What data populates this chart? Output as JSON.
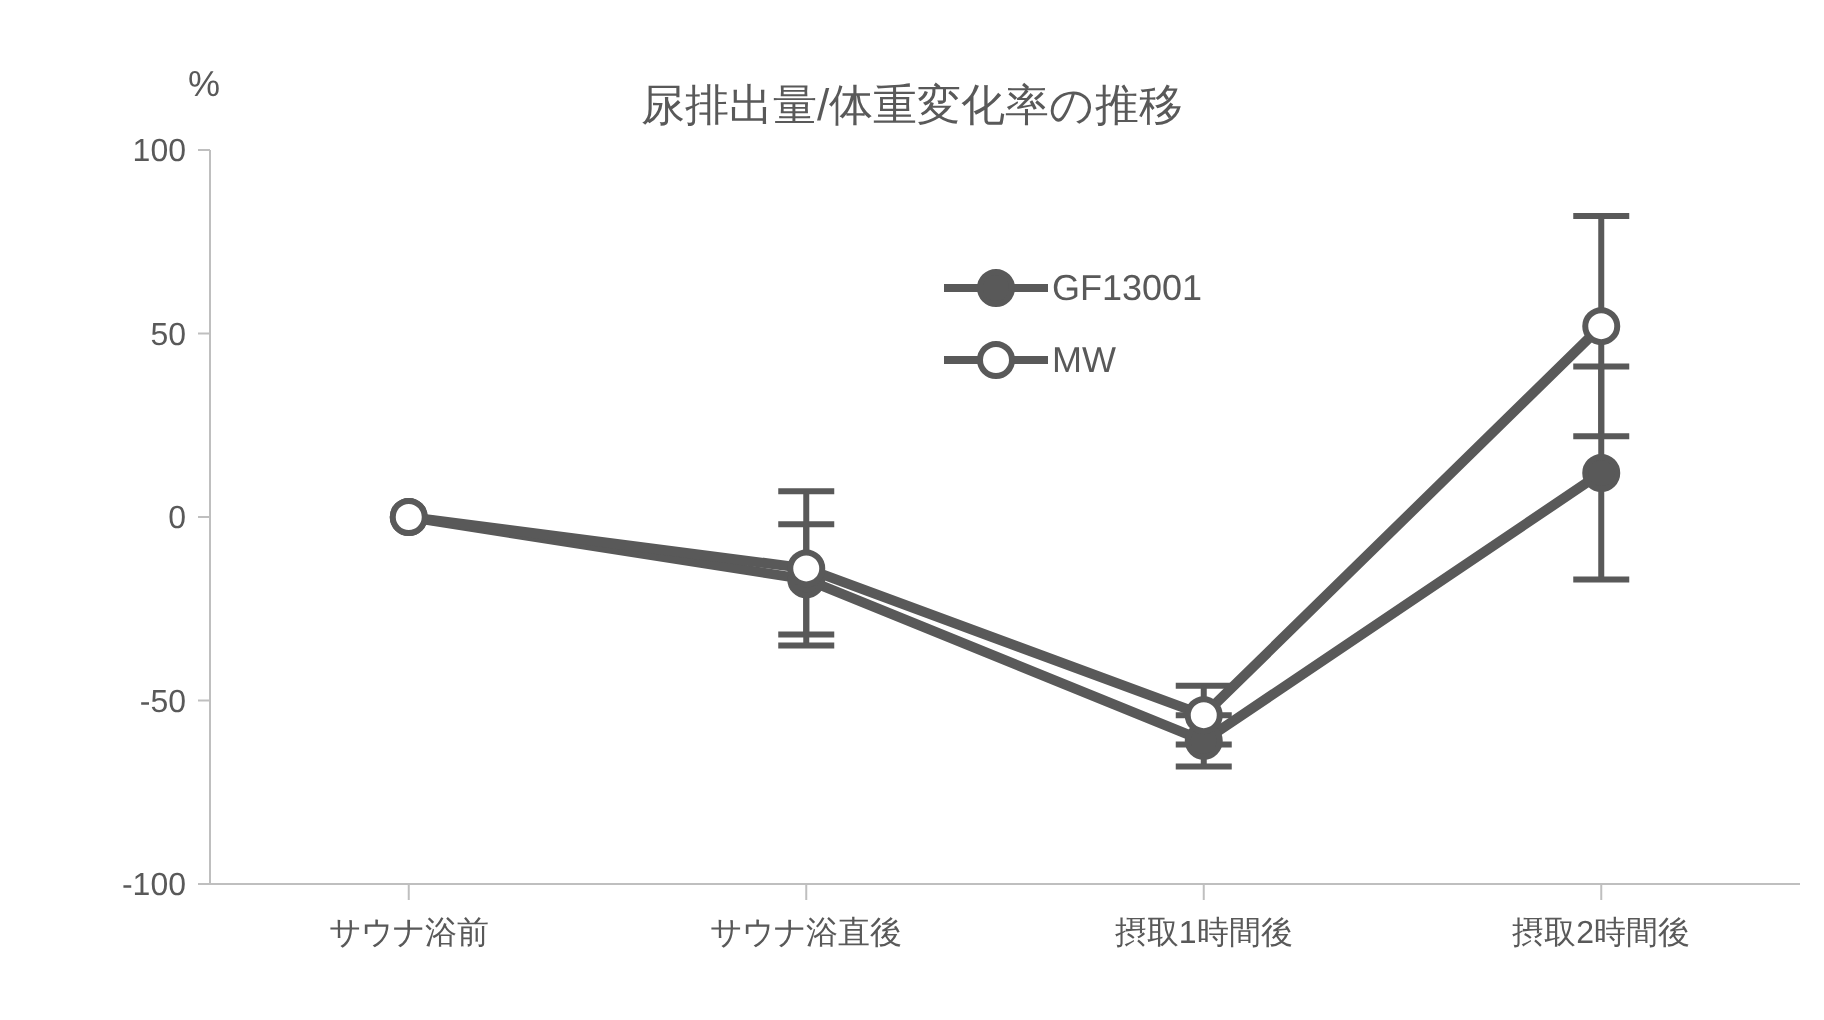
{
  "chart_data": {
    "type": "line",
    "title": "尿排出量/体重変化率の推移",
    "ylabel": "%",
    "categories": [
      "サウナ浴前",
      "サウナ浴直後",
      "摂取1時間後",
      "摂取2時間後"
    ],
    "series": [
      {
        "name": "GF13001",
        "color": "#595959",
        "values": [
          0,
          -17,
          -61,
          12
        ],
        "errors": [
          null,
          15,
          7,
          29
        ]
      },
      {
        "name": "MW",
        "color": "#595959",
        "values": [
          0,
          -14,
          -54,
          52
        ],
        "errors": [
          null,
          21,
          8,
          30
        ]
      }
    ],
    "ylim": [
      -100,
      100
    ],
    "yticks": [
      -100,
      -50,
      0,
      50,
      100
    ],
    "legend": "top",
    "marker": "circle",
    "line_style": "solid"
  }
}
